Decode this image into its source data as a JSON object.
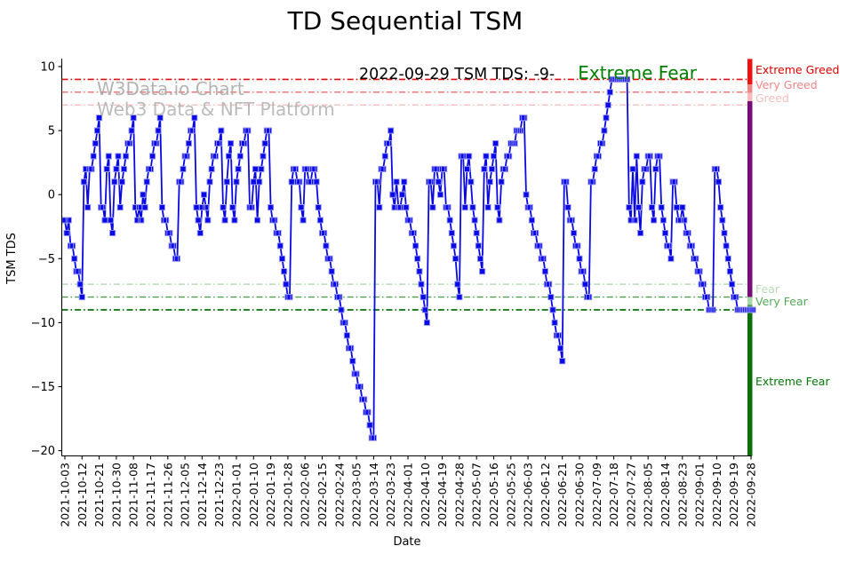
{
  "title": "TD Sequential TSM",
  "subtitle": {
    "date_part": "2022-09-29 TSM TDS: -9-",
    "status_part": "Extreme Fear",
    "status_color": "#008000"
  },
  "watermark": {
    "line1": "W3Data.io Chart",
    "line2": "Web3 Data & NFT Platform"
  },
  "axes": {
    "x_label": "Date",
    "y_label": "TSM TDS",
    "y_ticks": [
      10,
      5,
      0,
      -5,
      -10,
      -15,
      -20
    ],
    "y_tick_labels": [
      "10",
      "5",
      "0",
      "−5",
      "−10",
      "−15",
      "−20"
    ]
  },
  "zones": [
    {
      "label": "Extreme Greed",
      "color": "#dd0000",
      "value": 9.7
    },
    {
      "label": "Very Greed",
      "color": "#f28585",
      "value": 8.55
    },
    {
      "label": "Greed",
      "color": "#f6bdbd",
      "value": 7.5
    },
    {
      "label": "Fear",
      "color": "#b7dcb7",
      "value": -7.4
    },
    {
      "label": "Very Fear",
      "color": "#57a857",
      "value": -8.4
    },
    {
      "label": "Extreme Fear",
      "color": "#067806",
      "value": -14.6
    }
  ],
  "right_bar": {
    "segments": [
      {
        "from": 10.6,
        "to": 8.6,
        "color": "#ee1111"
      },
      {
        "from": 8.6,
        "to": 7.95,
        "color": "#f08585"
      },
      {
        "from": 7.95,
        "to": 7.3,
        "color": "#f6bcbc"
      },
      {
        "from": 7.3,
        "to": -8.0,
        "color": "#7a0b7a"
      },
      {
        "from": -8.0,
        "to": -8.6,
        "color": "#a9d6a9"
      },
      {
        "from": -8.6,
        "to": -9.25,
        "color": "#4d9e4d"
      },
      {
        "from": -9.25,
        "to": -20.4,
        "color": "#077307"
      }
    ]
  },
  "chart_data": {
    "type": "line",
    "title": "TD Sequential TSM",
    "xlabel": "Date",
    "ylabel": "TSM TDS",
    "ylim": [
      -20.4,
      10.6
    ],
    "grid": false,
    "legend": "none",
    "x_start_date": "2021-10-03",
    "x_end_date": "2022-09-29",
    "frequency": "daily",
    "x_tick_step_days": 9,
    "x_tick_labels": [
      "2021-10-03",
      "2021-10-12",
      "2021-10-21",
      "2021-10-30",
      "2021-11-08",
      "2021-11-17",
      "2021-11-26",
      "2021-12-05",
      "2021-12-14",
      "2021-12-23",
      "2022-01-01",
      "2022-01-10",
      "2022-01-19",
      "2022-01-28",
      "2022-02-06",
      "2022-02-15",
      "2022-02-24",
      "2022-03-05",
      "2022-03-14",
      "2022-03-23",
      "2022-04-01",
      "2022-04-10",
      "2022-04-19",
      "2022-04-28",
      "2022-05-07",
      "2022-05-16",
      "2022-05-25",
      "2022-06-03",
      "2022-06-12",
      "2022-06-21",
      "2022-06-30",
      "2022-07-09",
      "2022-07-18",
      "2022-07-27",
      "2022-08-05",
      "2022-08-14",
      "2022-08-23",
      "2022-09-01",
      "2022-09-10",
      "2022-09-19",
      "2022-09-28"
    ],
    "thresholds": [
      {
        "value": 9,
        "color": "#e01010",
        "width": 1.6
      },
      {
        "value": 8,
        "color": "#f06a6a",
        "width": 1.4
      },
      {
        "value": 7,
        "color": "#f8b8b8",
        "width": 1.3
      },
      {
        "value": -7,
        "color": "#a9d6a9",
        "width": 1.3
      },
      {
        "value": -8,
        "color": "#4d9e4d",
        "width": 1.4
      },
      {
        "value": -9,
        "color": "#077307",
        "width": 1.8
      }
    ],
    "series": [
      {
        "name": "TSM TDS",
        "color": "#0a0ae0",
        "marker_color": "#0a0ae8",
        "marker_edge_color": "#9a9af5",
        "values": [
          -2,
          -3,
          -2,
          -4,
          -4,
          -5,
          -6,
          -6,
          -7,
          -8,
          1,
          2,
          -1,
          2,
          2,
          3,
          4,
          5,
          6,
          -1,
          -1,
          -2,
          2,
          3,
          -2,
          -3,
          1,
          2,
          3,
          -1,
          1,
          2,
          3,
          4,
          4,
          5,
          6,
          -1,
          -2,
          -1,
          -2,
          0,
          -1,
          1,
          2,
          2,
          3,
          4,
          4,
          5,
          6,
          -1,
          -2,
          -2,
          -3,
          -3,
          -4,
          -4,
          -5,
          -5,
          1,
          1,
          2,
          3,
          3,
          4,
          5,
          5,
          6,
          -1,
          -2,
          -3,
          -1,
          0,
          -1,
          -2,
          1,
          2,
          3,
          3,
          4,
          4,
          5,
          -1,
          -2,
          1,
          3,
          4,
          -1,
          -2,
          1,
          2,
          3,
          4,
          4,
          5,
          5,
          -1,
          -1,
          1,
          2,
          -2,
          1,
          2,
          3,
          4,
          5,
          5,
          -1,
          -2,
          -2,
          -3,
          -3,
          -4,
          -5,
          -6,
          -7,
          -8,
          -8,
          1,
          2,
          2,
          1,
          1,
          -1,
          -2,
          2,
          2,
          1,
          1,
          2,
          2,
          1,
          -1,
          -2,
          -3,
          -3,
          -4,
          -5,
          -5,
          -6,
          -7,
          -7,
          -8,
          -8,
          -9,
          -10,
          -10,
          -11,
          -12,
          -12,
          -13,
          -14,
          -14,
          -15,
          -15,
          -16,
          -16,
          -17,
          -17,
          -18,
          -19,
          -19,
          1,
          1,
          -1,
          2,
          2,
          3,
          4,
          4,
          5,
          0,
          -1,
          1,
          -1,
          -1,
          0,
          1,
          -1,
          -2,
          -2,
          -3,
          -3,
          -4,
          -5,
          -6,
          -7,
          -8,
          -9,
          -10,
          1,
          1,
          -1,
          2,
          2,
          1,
          0,
          2,
          2,
          -1,
          -1,
          -2,
          -3,
          -4,
          -5,
          -7,
          -8,
          3,
          3,
          -1,
          2,
          3,
          1,
          -1,
          -2,
          -3,
          -4,
          -5,
          -6,
          2,
          3,
          -1,
          1,
          2,
          3,
          4,
          -1,
          -2,
          1,
          2,
          2,
          3,
          3,
          4,
          4,
          4,
          5,
          5,
          5,
          6,
          6,
          0,
          -1,
          -1,
          -2,
          -3,
          -3,
          -4,
          -4,
          -5,
          -5,
          -6,
          -7,
          -7,
          -8,
          -9,
          -10,
          -11,
          -11,
          -12,
          -13,
          1,
          1,
          -1,
          -2,
          -2,
          -3,
          -4,
          -4,
          -5,
          -6,
          -6,
          -7,
          -8,
          -8,
          1,
          1,
          2,
          3,
          3,
          4,
          4,
          5,
          6,
          7,
          8,
          9,
          9,
          9,
          9,
          9,
          9,
          9,
          9,
          9,
          -1,
          -2,
          2,
          -2,
          3,
          -1,
          -3,
          1,
          2,
          2,
          3,
          3,
          -1,
          -2,
          2,
          3,
          3,
          -1,
          -2,
          -3,
          -4,
          -4,
          -5,
          1,
          1,
          -1,
          -2,
          -2,
          -1,
          -2,
          -3,
          -3,
          -4,
          -4,
          -5,
          -5,
          -6,
          -6,
          -7,
          -7,
          -8,
          -8,
          -9,
          -9,
          -9,
          2,
          2,
          1,
          -1,
          -2,
          -3,
          -4,
          -5,
          -6,
          -7,
          -8,
          -8,
          -9,
          -9,
          -9,
          -9,
          -9,
          -9,
          -9,
          -9,
          -9
        ]
      }
    ]
  }
}
